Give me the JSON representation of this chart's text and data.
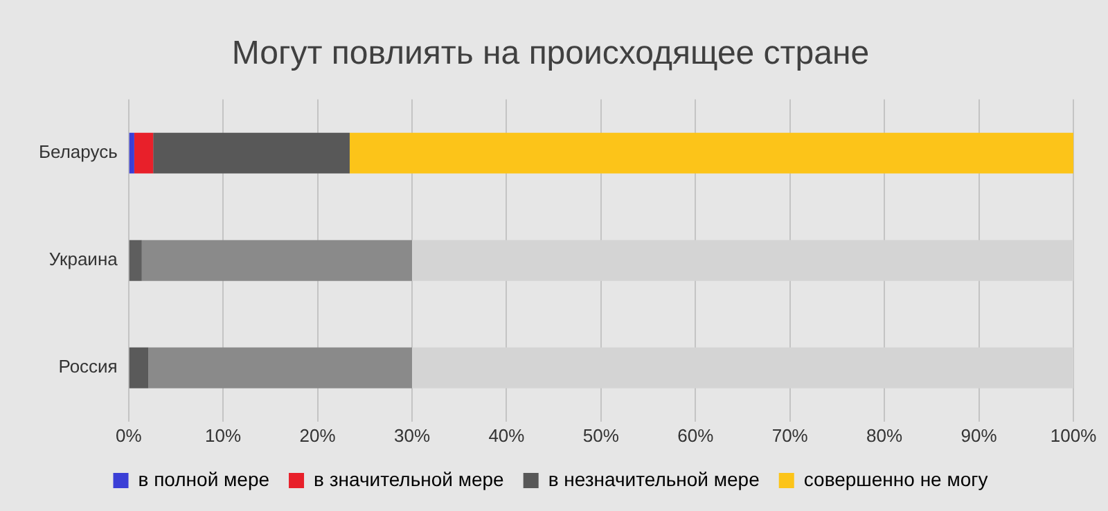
{
  "chart_data": {
    "type": "bar",
    "orientation": "horizontal",
    "stacked": true,
    "title": "Могут повлиять на происходящее стране",
    "categories": [
      "Беларусь",
      "Украина",
      "Россия"
    ],
    "series": [
      {
        "name": "в полной мере",
        "color": "#3b3fd6",
        "colors": [
          "#3b3fd6",
          "#6a6a6a",
          "#6a6a6a"
        ],
        "values": [
          0.6,
          0,
          0
        ]
      },
      {
        "name": "в значительной мере",
        "color": "#e8202a",
        "colors": [
          "#e8202a",
          "#5e5e5e",
          "#5a5a5a"
        ],
        "values": [
          2.0,
          1.4,
          2.1
        ]
      },
      {
        "name": "в незначительной мере",
        "color": "#585858",
        "colors": [
          "#585858",
          "#8a8a8a",
          "#8a8a8a"
        ],
        "values": [
          20.8,
          28.6,
          27.9
        ]
      },
      {
        "name": "совершенно не могу",
        "color": "#fcc419",
        "colors": [
          "#fcc419",
          "#d4d4d4",
          "#d4d4d4"
        ],
        "values": [
          76.6,
          70,
          70
        ]
      }
    ],
    "xlim": [
      0,
      100
    ],
    "xticks": [
      {
        "value": 0,
        "label": "0%"
      },
      {
        "value": 10,
        "label": "10%"
      },
      {
        "value": 20,
        "label": "20%"
      },
      {
        "value": 30,
        "label": "30%"
      },
      {
        "value": 40,
        "label": "40%"
      },
      {
        "value": 50,
        "label": "50%"
      },
      {
        "value": 60,
        "label": "60%"
      },
      {
        "value": 70,
        "label": "70%"
      },
      {
        "value": 80,
        "label": "80%"
      },
      {
        "value": 90,
        "label": "90%"
      },
      {
        "value": 100,
        "label": "100%"
      }
    ],
    "grid": "x",
    "legend": "bottom"
  }
}
